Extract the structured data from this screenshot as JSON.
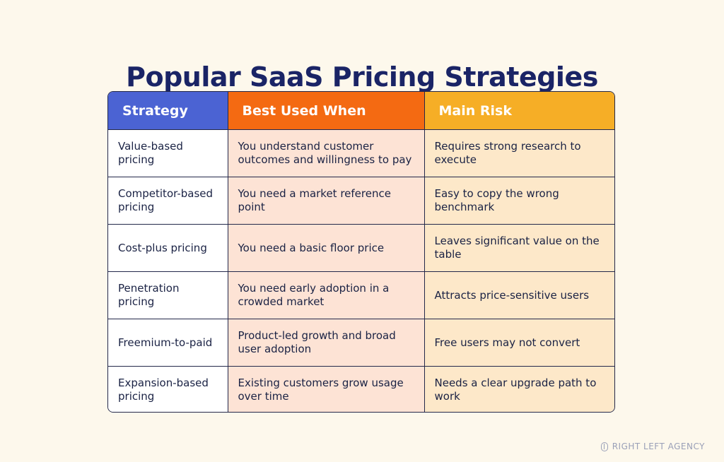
{
  "title": "Popular SaaS Pricing Strategies",
  "table": {
    "headers": [
      "Strategy",
      "Best Used When",
      "Main Risk"
    ],
    "header_colors": [
      "#4b63d3",
      "#f46a12",
      "#f6ae26"
    ],
    "rows": [
      [
        "Value-based pricing",
        "You understand customer outcomes and willingness to pay",
        "Requires strong research to execute"
      ],
      [
        "Competitor-based pricing",
        "You need a market reference point",
        "Easy to copy the wrong benchmark"
      ],
      [
        "Cost-plus pricing",
        "You need a basic floor price",
        "Leaves significant value on the table"
      ],
      [
        "Penetration pricing",
        "You need early adoption in a crowded market",
        "Attracts price-sensitive users"
      ],
      [
        "Freemium-to-paid",
        "Product-led growth and broad user adoption",
        "Free users may not convert"
      ],
      [
        "Expansion-based pricing",
        "Existing customers grow usage over time",
        "Needs a clear upgrade path to work"
      ]
    ]
  },
  "brand": {
    "icon": "agency-logo-icon",
    "name": "RIGHT LEFT AGENCY"
  }
}
